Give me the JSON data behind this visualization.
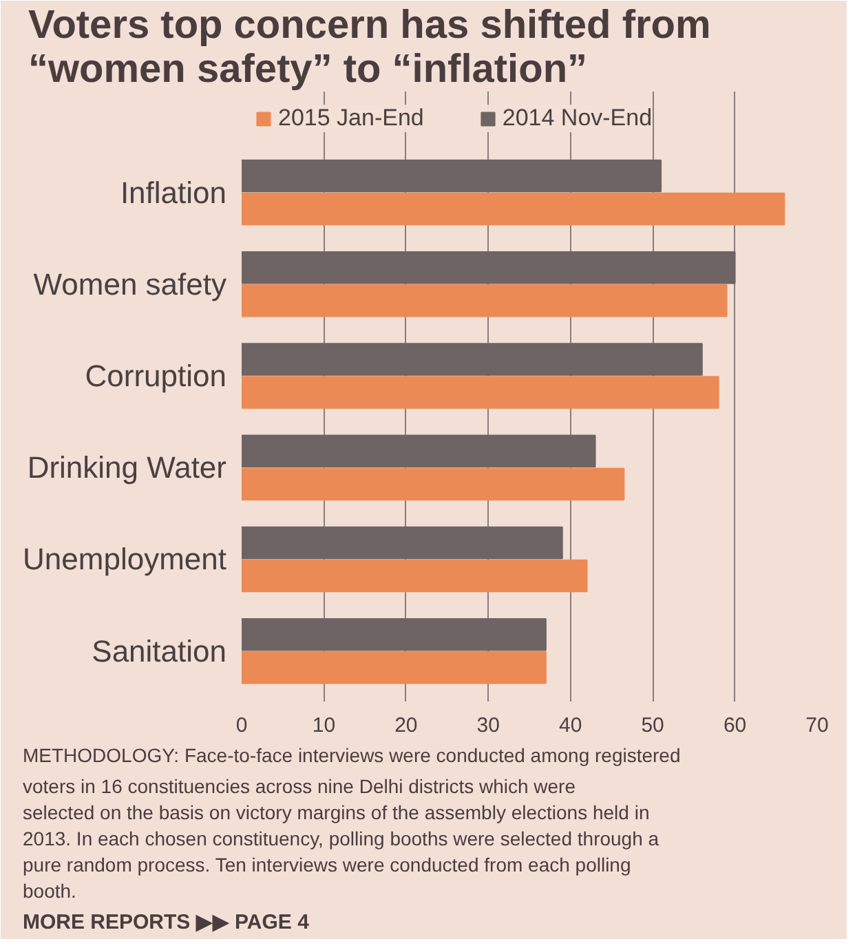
{
  "chart_data": {
    "type": "bar",
    "orientation": "horizontal",
    "title": "Voters top concern has shifted from “women safety” to “inflation”",
    "categories": [
      "Inflation",
      "Women safety",
      "Corruption",
      "Drinking Water",
      "Unemployment",
      "Sanitation"
    ],
    "series": [
      {
        "name": "2015 Jan-End",
        "color": "#ec8a55",
        "values": [
          66,
          59,
          58,
          46.5,
          42,
          37
        ]
      },
      {
        "name": "2014 Nov-End",
        "color": "#6e6463",
        "values": [
          51,
          60,
          56,
          43,
          39,
          37
        ]
      }
    ],
    "xlim": [
      0,
      70
    ],
    "xticks": [
      0,
      10,
      20,
      30,
      40,
      50,
      60,
      70
    ],
    "grid": "x",
    "legend": "top",
    "annotations": [
      "METHODOLOGY: Face-to-face interviews were conducted among registered voters in 16 constituencies across nine Delhi districts which were selected on the basis on victory margins of the assembly elections held in 2013. In each chosen constituency, polling booths were selected through a pure random process. Ten interviews were conducted from each polling booth.",
      "MORE REPORTS ▶▶ PAGE 4"
    ]
  }
}
